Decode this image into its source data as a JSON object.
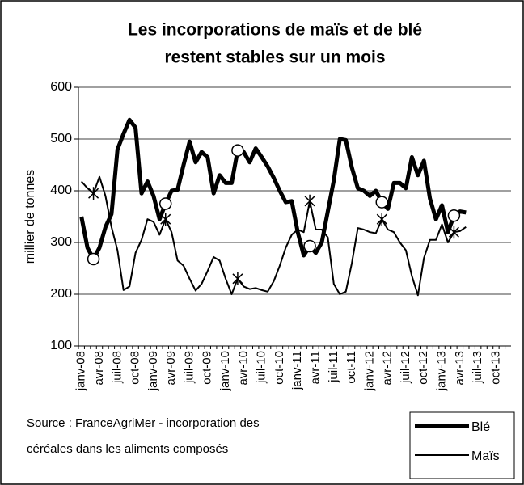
{
  "chart_data": {
    "type": "line",
    "title": [
      "Les incorporations de maïs et de blé",
      "restent stables sur un mois"
    ],
    "ylabel": "millier de tonnes",
    "source": [
      "Source : FranceAgriMer - incorporation des",
      "céréales dans les aliments composés"
    ],
    "categories": [
      "janv-08",
      null,
      null,
      "avr-08",
      null,
      null,
      "juil-08",
      null,
      null,
      "oct-08",
      null,
      null,
      "janv-09",
      null,
      null,
      "avr-09",
      null,
      null,
      "juil-09",
      null,
      null,
      "oct-09",
      null,
      null,
      "janv-10",
      null,
      null,
      "avr-10",
      null,
      null,
      "juil-10",
      null,
      null,
      "oct-10",
      null,
      null,
      "janv-11",
      null,
      null,
      "avr-11",
      null,
      null,
      "juil-11",
      null,
      null,
      "oct-11",
      null,
      null,
      "janv-12",
      null,
      null,
      "avr-12",
      null,
      null,
      "juil-12",
      null,
      null,
      "oct-12",
      null,
      null,
      "janv-13",
      null,
      null,
      "avr-13",
      null,
      null,
      "juil-13",
      null,
      null,
      "oct-13",
      null,
      null
    ],
    "series": [
      {
        "name": "Blé",
        "color": "#000000",
        "marker": "circle",
        "values": [
          350,
          290,
          268,
          290,
          330,
          355,
          480,
          510,
          537,
          522,
          395,
          418,
          390,
          345,
          375,
          400,
          402,
          450,
          495,
          455,
          475,
          465,
          395,
          430,
          415,
          415,
          478,
          475,
          455,
          482,
          465,
          447,
          425,
          400,
          378,
          380,
          320,
          275,
          293,
          280,
          300,
          360,
          420,
          500,
          498,
          445,
          405,
          400,
          390,
          400,
          378,
          365,
          415,
          415,
          405,
          465,
          430,
          458,
          385,
          345,
          372,
          320,
          352,
          360,
          358,
          null,
          null,
          null,
          null,
          null,
          null,
          null
        ]
      },
      {
        "name": "Maïs",
        "color": "#000000",
        "marker": "star",
        "values": [
          418,
          405,
          395,
          427,
          390,
          330,
          285,
          208,
          215,
          280,
          305,
          345,
          340,
          315,
          345,
          320,
          265,
          255,
          230,
          207,
          220,
          245,
          272,
          265,
          230,
          200,
          230,
          215,
          210,
          212,
          208,
          205,
          225,
          255,
          290,
          315,
          325,
          320,
          380,
          325,
          325,
          310,
          220,
          200,
          205,
          260,
          328,
          325,
          320,
          318,
          345,
          325,
          320,
          300,
          285,
          235,
          198,
          270,
          305,
          305,
          335,
          300,
          320,
          322,
          330,
          null,
          null,
          null,
          null,
          null,
          null,
          null
        ]
      }
    ],
    "ylim": [
      100,
      600
    ],
    "yticks": [
      100,
      200,
      300,
      400,
      500,
      600
    ],
    "grid": true
  }
}
